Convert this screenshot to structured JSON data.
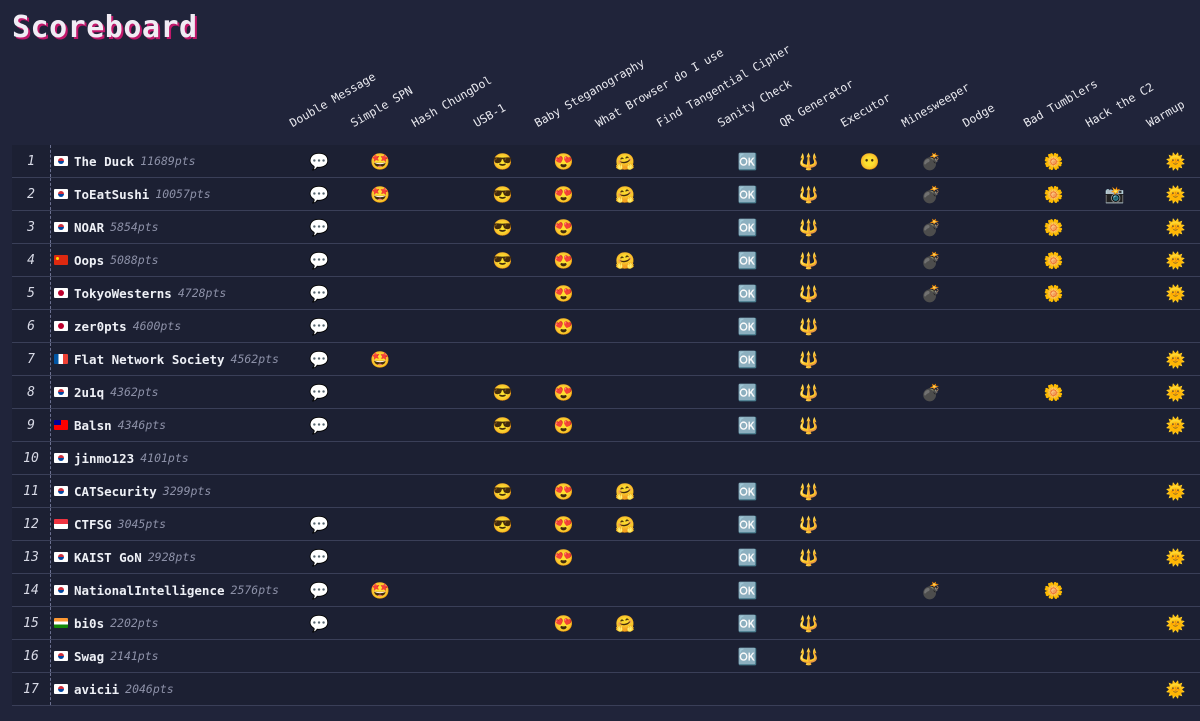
{
  "title": "Scoreboard",
  "challenges": [
    {
      "name": "Double Message",
      "icon": "💬"
    },
    {
      "name": "Simple SPN",
      "icon": "🤩"
    },
    {
      "name": "Hash ChungDol",
      "icon": ""
    },
    {
      "name": "USB-1",
      "icon": "😎"
    },
    {
      "name": "Baby Steganography",
      "icon": "😍"
    },
    {
      "name": "What Browser do I use",
      "icon": "🤗"
    },
    {
      "name": "Find Tangential Cipher",
      "icon": ""
    },
    {
      "name": "Sanity Check",
      "icon": "🆗"
    },
    {
      "name": "QR Generator",
      "icon": "🔱"
    },
    {
      "name": "Executor",
      "icon": "😶"
    },
    {
      "name": "Minesweeper",
      "icon": "💣"
    },
    {
      "name": "Dodge",
      "icon": ""
    },
    {
      "name": "Bad Tumblers",
      "icon": "🌼"
    },
    {
      "name": "Hack the C2",
      "icon": "📸"
    },
    {
      "name": "Warmup",
      "icon": "🌞"
    }
  ],
  "teams": [
    {
      "rank": "1",
      "flag": "kr",
      "name": "The Duck",
      "points": "11689pts",
      "solved": [
        0,
        1,
        3,
        4,
        5,
        7,
        8,
        9,
        10,
        12,
        14
      ]
    },
    {
      "rank": "2",
      "flag": "kr",
      "name": "ToEatSushi",
      "points": "10057pts",
      "solved": [
        0,
        1,
        3,
        4,
        5,
        7,
        8,
        10,
        12,
        13,
        14
      ]
    },
    {
      "rank": "3",
      "flag": "kr",
      "name": "NOAR",
      "points": "5854pts",
      "solved": [
        0,
        3,
        4,
        7,
        8,
        10,
        12,
        14
      ]
    },
    {
      "rank": "4",
      "flag": "cn",
      "name": "Oops",
      "points": "5088pts",
      "solved": [
        0,
        3,
        4,
        5,
        7,
        8,
        10,
        12,
        14
      ]
    },
    {
      "rank": "5",
      "flag": "jp",
      "name": "TokyoWesterns",
      "points": "4728pts",
      "solved": [
        0,
        4,
        7,
        8,
        10,
        12,
        14
      ]
    },
    {
      "rank": "6",
      "flag": "jp",
      "name": "zer0pts",
      "points": "4600pts",
      "solved": [
        0,
        4,
        7,
        8
      ]
    },
    {
      "rank": "7",
      "flag": "fr",
      "name": "Flat Network Society",
      "points": "4562pts",
      "solved": [
        0,
        1,
        7,
        8,
        14
      ]
    },
    {
      "rank": "8",
      "flag": "kr",
      "name": "2u1q",
      "points": "4362pts",
      "solved": [
        0,
        3,
        4,
        7,
        8,
        10,
        12,
        14
      ]
    },
    {
      "rank": "9",
      "flag": "tw",
      "name": "Balsn",
      "points": "4346pts",
      "solved": [
        0,
        3,
        4,
        7,
        8,
        14
      ]
    },
    {
      "rank": "10",
      "flag": "kr",
      "name": "jinmo123",
      "points": "4101pts",
      "solved": []
    },
    {
      "rank": "11",
      "flag": "kr",
      "name": "CATSecurity",
      "points": "3299pts",
      "solved": [
        3,
        4,
        5,
        7,
        8,
        14
      ]
    },
    {
      "rank": "12",
      "flag": "sg",
      "name": "CTFSG",
      "points": "3045pts",
      "solved": [
        0,
        3,
        4,
        5,
        7,
        8
      ]
    },
    {
      "rank": "13",
      "flag": "kr",
      "name": "KAIST GoN",
      "points": "2928pts",
      "solved": [
        0,
        4,
        7,
        8,
        14
      ]
    },
    {
      "rank": "14",
      "flag": "kr",
      "name": "NationalIntelligence",
      "points": "2576pts",
      "solved": [
        0,
        1,
        7,
        10,
        12
      ]
    },
    {
      "rank": "15",
      "flag": "in",
      "name": "bi0s",
      "points": "2202pts",
      "solved": [
        0,
        4,
        5,
        7,
        8,
        14
      ]
    },
    {
      "rank": "16",
      "flag": "kr",
      "name": "Swag",
      "points": "2141pts",
      "solved": [
        7,
        8
      ]
    },
    {
      "rank": "17",
      "flag": "kr",
      "name": "avicii",
      "points": "2046pts",
      "solved": [
        14
      ]
    }
  ]
}
